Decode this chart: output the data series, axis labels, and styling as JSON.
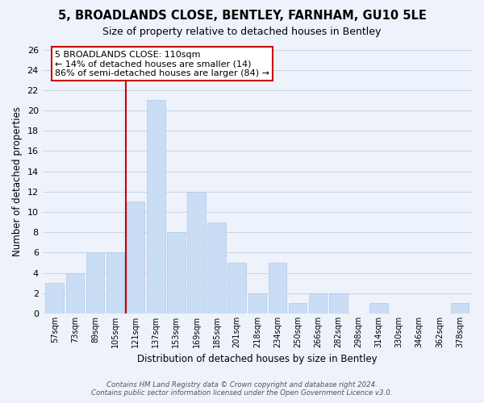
{
  "title": "5, BROADLANDS CLOSE, BENTLEY, FARNHAM, GU10 5LE",
  "subtitle": "Size of property relative to detached houses in Bentley",
  "xlabel": "Distribution of detached houses by size in Bentley",
  "ylabel": "Number of detached properties",
  "bar_labels": [
    "57sqm",
    "73sqm",
    "89sqm",
    "105sqm",
    "121sqm",
    "137sqm",
    "153sqm",
    "169sqm",
    "185sqm",
    "201sqm",
    "218sqm",
    "234sqm",
    "250sqm",
    "266sqm",
    "282sqm",
    "298sqm",
    "314sqm",
    "330sqm",
    "346sqm",
    "362sqm",
    "378sqm"
  ],
  "bar_values": [
    3,
    4,
    6,
    6,
    11,
    21,
    8,
    12,
    9,
    5,
    2,
    5,
    1,
    2,
    2,
    0,
    1,
    0,
    0,
    0,
    1
  ],
  "bar_color": "#c9ddf5",
  "bar_edge_color": "#b0c8e8",
  "reference_line_x": 3.5,
  "reference_line_color": "#cc0000",
  "ylim": [
    0,
    26
  ],
  "yticks": [
    0,
    2,
    4,
    6,
    8,
    10,
    12,
    14,
    16,
    18,
    20,
    22,
    24,
    26
  ],
  "annotation_title": "5 BROADLANDS CLOSE: 110sqm",
  "annotation_line1": "← 14% of detached houses are smaller (14)",
  "annotation_line2": "86% of semi-detached houses are larger (84) →",
  "annotation_box_color": "#ffffff",
  "annotation_box_edge": "#cc0000",
  "grid_color": "#c8d4e8",
  "footer_line1": "Contains HM Land Registry data © Crown copyright and database right 2024.",
  "footer_line2": "Contains public sector information licensed under the Open Government Licence v3.0.",
  "bg_color": "#eef2fa"
}
